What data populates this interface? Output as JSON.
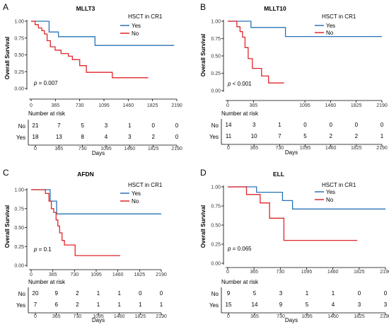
{
  "panels": [
    {
      "letter": "A",
      "chart_data": {
        "type": "line",
        "title": "MLLT3",
        "ylabel": "Overall Survival",
        "xlabel": "Days",
        "legend_title": "HSCT in CR1",
        "legend_placement": "top-right",
        "xticks": [
          "0",
          "365",
          "730",
          "1095",
          "1460",
          "1825",
          "2190"
        ],
        "yticks": [
          "0.00",
          "0.25",
          "0.50",
          "0.75",
          "1.00"
        ],
        "xlim": [
          0,
          2190
        ],
        "ylim": [
          0,
          1
        ],
        "p_prefix": "p",
        "p_value": " = 0.007",
        "series": [
          {
            "name": "Yes",
            "color": "#2a73b8",
            "x": [
              0,
              180,
              270,
              410,
              960,
              2150
            ],
            "y": [
              1.0,
              1.0,
              0.84,
              0.77,
              0.64,
              0.64
            ]
          },
          {
            "name": "No",
            "color": "#e0262a",
            "x": [
              0,
              60,
              110,
              160,
              200,
              240,
              290,
              360,
              450,
              560,
              620,
              730,
              830,
              1000,
              1220,
              1760
            ],
            "y": [
              1.0,
              0.95,
              0.9,
              0.86,
              0.81,
              0.71,
              0.62,
              0.57,
              0.52,
              0.48,
              0.43,
              0.34,
              0.24,
              0.24,
              0.16,
              0.16
            ]
          }
        ],
        "risk_table": {
          "title": "Number at risk",
          "rows": [
            {
              "label": "No",
              "values": [
                "21",
                "7",
                "5",
                "3",
                "1",
                "0",
                "0"
              ]
            },
            {
              "label": "Yes",
              "values": [
                "18",
                "13",
                "8",
                "4",
                "3",
                "2",
                "0"
              ]
            }
          ]
        }
      }
    },
    {
      "letter": "B",
      "chart_data": {
        "type": "line",
        "title": "MLLT10",
        "ylabel": "Overall Survival",
        "xlabel": "Days",
        "legend_title": "HSCT in CR1",
        "legend_placement": "top-right",
        "xticks": [
          "0",
          "365",
          "1095",
          "1460",
          "1825",
          "2190"
        ],
        "xtick_values": [
          0,
          365,
          1095,
          1460,
          1825,
          2190
        ],
        "yticks": [
          "0.00",
          "0.25",
          "0.50",
          "0.75",
          "1.00"
        ],
        "xlim": [
          0,
          2190
        ],
        "ylim": [
          0,
          1
        ],
        "p_prefix": "p",
        "p_value": " < 0.001",
        "series": [
          {
            "name": "Yes",
            "color": "#2a73b8",
            "x": [
              0,
              330,
              820,
              2190
            ],
            "y": [
              1.0,
              0.91,
              0.78,
              0.78
            ]
          },
          {
            "name": "No",
            "color": "#e0262a",
            "x": [
              0,
              130,
              175,
              210,
              245,
              290,
              350,
              480,
              580,
              800
            ],
            "y": [
              1.0,
              0.92,
              0.85,
              0.77,
              0.62,
              0.46,
              0.32,
              0.21,
              0.11,
              0.11
            ]
          }
        ],
        "risk_table": {
          "title": "Number at risk",
          "xticks": [
            "0",
            "365",
            "730",
            "1095",
            "1460",
            "1825",
            "2190"
          ],
          "rows": [
            {
              "label": "No",
              "values": [
                "14",
                "3",
                "1",
                "0",
                "0",
                "0",
                "0"
              ]
            },
            {
              "label": "Yes",
              "values": [
                "11",
                "10",
                "7",
                "5",
                "2",
                "2",
                "1"
              ]
            }
          ]
        }
      }
    },
    {
      "letter": "C",
      "chart_data": {
        "type": "line",
        "title": "AFDN",
        "ylabel": "Overall Survival",
        "xlabel": "Days",
        "legend_title": "HSCT in CR1",
        "legend_placement": "top-right",
        "xticks": [
          "0",
          "365",
          "730",
          "1095",
          "1460",
          "1825",
          "2190"
        ],
        "yticks": [
          "0.00",
          "0.25",
          "0.50",
          "0.75",
          "1.00"
        ],
        "xlim": [
          0,
          2190
        ],
        "ylim": [
          0,
          1
        ],
        "p_prefix": "p",
        "p_value": " = 0.1",
        "series": [
          {
            "name": "Yes",
            "color": "#2a73b8",
            "x": [
              0,
              210,
              320,
              430,
              2190
            ],
            "y": [
              1.0,
              1.0,
              0.85,
              0.68,
              0.68
            ]
          },
          {
            "name": "No",
            "color": "#e0262a",
            "x": [
              0,
              240,
              300,
              340,
              380,
              420,
              450,
              480,
              520,
              560,
              740,
              1500
            ],
            "y": [
              1.0,
              0.95,
              0.85,
              0.75,
              0.7,
              0.6,
              0.52,
              0.43,
              0.33,
              0.27,
              0.13,
              0.13
            ]
          }
        ],
        "risk_table": {
          "title": "Number at risk",
          "rows": [
            {
              "label": "No",
              "values": [
                "20",
                "9",
                "2",
                "1",
                "1",
                "0",
                "0"
              ]
            },
            {
              "label": "Yes",
              "values": [
                "7",
                "6",
                "2",
                "1",
                "1",
                "1",
                "1"
              ]
            }
          ]
        }
      }
    },
    {
      "letter": "D",
      "chart_data": {
        "type": "line",
        "title": "ELL",
        "ylabel": "Overall Survival",
        "xlabel": "Days",
        "legend_title": "HSCT in CR1",
        "legend_placement": "top-right",
        "xticks": [
          "0",
          "365",
          "730",
          "1095",
          "1460",
          "1825",
          "2190"
        ],
        "yticks": [
          "0.00",
          "0.25",
          "0.50",
          "0.75",
          "1.00"
        ],
        "xlim": [
          0,
          2190
        ],
        "ylim": [
          0,
          1
        ],
        "p_prefix": "p",
        "p_value": " = 0.065",
        "series": [
          {
            "name": "Yes",
            "color": "#2a73b8",
            "x": [
              0,
              330,
              400,
              760,
              900,
              2190
            ],
            "y": [
              1.0,
              1.0,
              0.93,
              0.82,
              0.71,
              0.71
            ]
          },
          {
            "name": "No",
            "color": "#e0262a",
            "x": [
              0,
              260,
              450,
              580,
              780,
              1800
            ],
            "y": [
              1.0,
              0.9,
              0.79,
              0.59,
              0.3,
              0.3
            ]
          }
        ],
        "risk_table": {
          "title": "Number at risk",
          "rows": [
            {
              "label": "No",
              "values": [
                "9",
                "5",
                "3",
                "1",
                "1",
                "0",
                "0"
              ]
            },
            {
              "label": "Yes",
              "values": [
                "15",
                "14",
                "9",
                "5",
                "4",
                "3",
                "3"
              ]
            }
          ]
        }
      }
    }
  ]
}
